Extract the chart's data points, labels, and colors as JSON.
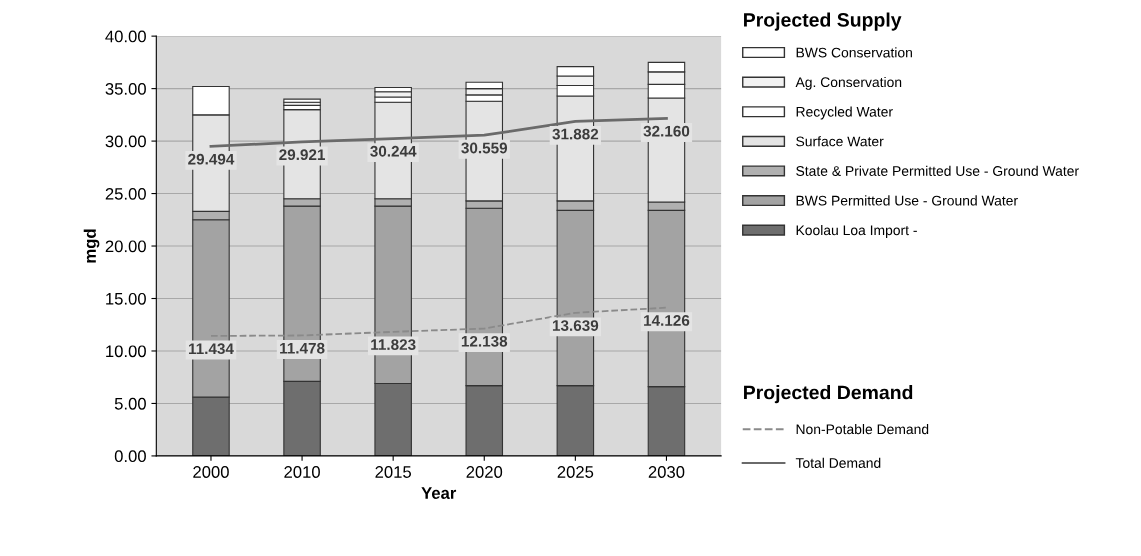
{
  "chart_data": {
    "type": "bar",
    "stacked": true,
    "xlabel": "Year",
    "ylabel": "mgd",
    "categories": [
      "2000",
      "2010",
      "2015",
      "2020",
      "2025",
      "2030"
    ],
    "ylim": [
      0,
      40
    ],
    "yticks": [
      {
        "value": 0,
        "label": "0.00"
      },
      {
        "value": 5,
        "label": "5.00"
      },
      {
        "value": 10,
        "label": "10.00"
      },
      {
        "value": 15,
        "label": "15.00"
      },
      {
        "value": 20,
        "label": "20.00"
      },
      {
        "value": 25,
        "label": "25.00"
      },
      {
        "value": 30,
        "label": "30.00"
      },
      {
        "value": 35,
        "label": "35.00"
      },
      {
        "value": 40,
        "label": "40.00"
      }
    ],
    "grid": "y",
    "legend": "right",
    "legend_title": "Projected Supply",
    "annotations": [
      "Projected Demand"
    ],
    "series": [
      {
        "name": "Koolau Loa Import -",
        "color": "#6e6e6e",
        "values": [
          5.6,
          7.1,
          6.9,
          6.7,
          6.7,
          6.6
        ]
      },
      {
        "name": "BWS Permitted Use - Ground Water",
        "color": "#a3a3a3",
        "values": [
          16.9,
          16.7,
          16.9,
          16.9,
          16.7,
          16.8
        ]
      },
      {
        "name": "State & Private Permitted Use - Ground Water",
        "color": "#b0b0b0",
        "values": [
          0.8,
          0.7,
          0.7,
          0.7,
          0.9,
          0.8
        ]
      },
      {
        "name": "Surface Water",
        "color": "#e4e4e4",
        "values": [
          9.2,
          8.5,
          9.2,
          9.5,
          10.0,
          9.9
        ]
      },
      {
        "name": "Recycled Water",
        "color": "#ffffff",
        "values": [
          2.7,
          0.4,
          0.5,
          0.6,
          1.0,
          1.3
        ]
      },
      {
        "name": "Ag. Conservation",
        "color": "#f2f2f2",
        "values": [
          null,
          0.3,
          0.5,
          0.6,
          0.9,
          1.2
        ]
      },
      {
        "name": "BWS Conservation",
        "color": "#ffffff",
        "values": [
          null,
          0.3,
          0.4,
          0.6,
          0.9,
          0.9
        ]
      },
      {
        "name": "Non-Potable Demand",
        "type": "line",
        "line_style": "dashed",
        "color": "#8a8a8a",
        "values": [
          11.434,
          11.478,
          11.823,
          12.138,
          13.639,
          14.126
        ],
        "value_labels": [
          "11.434",
          "11.478",
          "11.823",
          "12.138",
          "13.639",
          "14.126"
        ]
      },
      {
        "name": "Total Demand",
        "type": "line",
        "line_style": "solid",
        "color": "#6a6a6a",
        "values": [
          29.494,
          29.921,
          30.244,
          30.559,
          31.882,
          32.16
        ],
        "value_labels": [
          "29.494",
          "29.921",
          "30.244",
          "30.559",
          "31.882",
          "32.160"
        ]
      }
    ]
  }
}
